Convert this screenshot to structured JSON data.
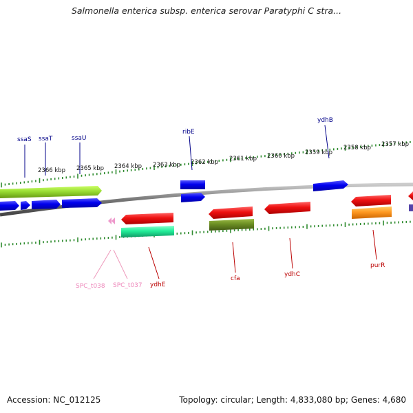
{
  "title": "Salmonella enterica subsp. enterica serovar Paratyphi C stra...",
  "footer": {
    "accession": "Accession: NC_012125",
    "summary": "Topology: circular; Length: 4,833,080 bp; Genes: 4,680"
  },
  "scale_labels": [
    "2366 kbp",
    "2365 kbp",
    "2364 kbp",
    "2363 kbp",
    "2362 kbp",
    "2361 kbp",
    "2360 kbp",
    "2359 kbp",
    "2358 kbp",
    "2357 kbp"
  ],
  "gene_labels": {
    "top": [
      "ssaS",
      "ssaT",
      "ssaU",
      "ribE",
      "ydhB"
    ],
    "bottom": [
      "SPC_t038",
      "SPC_t037",
      "ydhE",
      "cfa",
      "ydhC",
      "purR"
    ]
  },
  "colors": {
    "backbone": "#8a8a8a",
    "tick": "#2e8b2e",
    "blue_gene": "#0000ee",
    "red_gene": "#ee1111",
    "lime_gene": "#99dd33",
    "teal_gene": "#22ee99",
    "olive_gene": "#6b8e23",
    "orange_gene": "#ff9922",
    "trna_pink": "#ee88cc",
    "label_blue": "#000088",
    "label_red": "#bb0000",
    "label_pink": "#ee88bb"
  }
}
